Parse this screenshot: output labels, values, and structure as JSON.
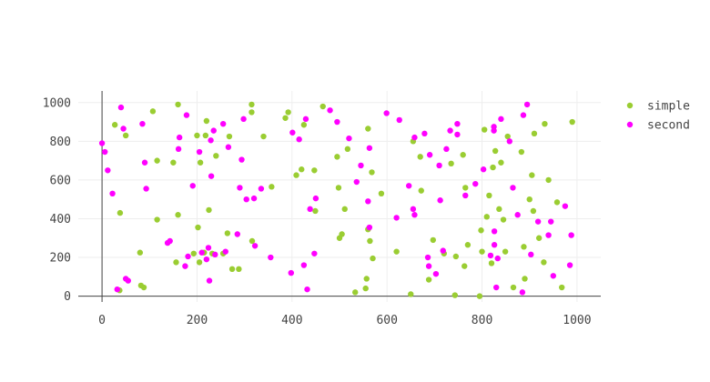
{
  "chart_data": {
    "type": "scatter",
    "xlim": [
      -50,
      1050
    ],
    "ylim": [
      -30,
      1060
    ],
    "x_ticks": [
      0,
      200,
      400,
      600,
      800,
      1000
    ],
    "y_ticks": [
      0,
      200,
      400,
      600,
      800,
      1000
    ],
    "grid": true,
    "legend_position": "top-right",
    "series": [
      {
        "name": "simple",
        "color": "#9acd32",
        "points": [
          [
            27,
            885
          ],
          [
            37,
            30
          ],
          [
            38,
            430
          ],
          [
            50,
            830
          ],
          [
            80,
            225
          ],
          [
            82,
            55
          ],
          [
            88,
            45
          ],
          [
            107,
            955
          ],
          [
            116,
            395
          ],
          [
            116,
            700
          ],
          [
            150,
            690
          ],
          [
            156,
            175
          ],
          [
            160,
            420
          ],
          [
            160,
            990
          ],
          [
            193,
            220
          ],
          [
            200,
            830
          ],
          [
            202,
            355
          ],
          [
            205,
            175
          ],
          [
            207,
            690
          ],
          [
            215,
            225
          ],
          [
            218,
            830
          ],
          [
            220,
            905
          ],
          [
            225,
            445
          ],
          [
            232,
            220
          ],
          [
            240,
            725
          ],
          [
            255,
            220
          ],
          [
            264,
            325
          ],
          [
            268,
            825
          ],
          [
            274,
            140
          ],
          [
            288,
            140
          ],
          [
            315,
            990
          ],
          [
            315,
            950
          ],
          [
            316,
            285
          ],
          [
            340,
            825
          ],
          [
            357,
            565
          ],
          [
            386,
            920
          ],
          [
            392,
            950
          ],
          [
            409,
            625
          ],
          [
            420,
            655
          ],
          [
            425,
            885
          ],
          [
            447,
            650
          ],
          [
            449,
            440
          ],
          [
            465,
            980
          ],
          [
            495,
            720
          ],
          [
            498,
            560
          ],
          [
            500,
            300
          ],
          [
            505,
            320
          ],
          [
            511,
            450
          ],
          [
            517,
            760
          ],
          [
            533,
            20
          ],
          [
            555,
            40
          ],
          [
            557,
            90
          ],
          [
            560,
            345
          ],
          [
            560,
            865
          ],
          [
            564,
            285
          ],
          [
            568,
            640
          ],
          [
            570,
            195
          ],
          [
            588,
            530
          ],
          [
            620,
            230
          ],
          [
            650,
            10
          ],
          [
            655,
            800
          ],
          [
            670,
            720
          ],
          [
            672,
            545
          ],
          [
            688,
            85
          ],
          [
            697,
            290
          ],
          [
            720,
            220
          ],
          [
            735,
            685
          ],
          [
            743,
            5
          ],
          [
            745,
            205
          ],
          [
            760,
            730
          ],
          [
            763,
            155
          ],
          [
            765,
            560
          ],
          [
            770,
            265
          ],
          [
            795,
            0
          ],
          [
            798,
            340
          ],
          [
            800,
            230
          ],
          [
            805,
            860
          ],
          [
            810,
            410
          ],
          [
            815,
            520
          ],
          [
            820,
            170
          ],
          [
            823,
            665
          ],
          [
            828,
            750
          ],
          [
            836,
            450
          ],
          [
            840,
            690
          ],
          [
            845,
            395
          ],
          [
            849,
            230
          ],
          [
            854,
            825
          ],
          [
            866,
            45
          ],
          [
            883,
            745
          ],
          [
            888,
            255
          ],
          [
            890,
            90
          ],
          [
            900,
            500
          ],
          [
            905,
            625
          ],
          [
            908,
            440
          ],
          [
            910,
            840
          ],
          [
            920,
            300
          ],
          [
            930,
            175
          ],
          [
            932,
            890
          ],
          [
            940,
            600
          ],
          [
            958,
            485
          ],
          [
            968,
            45
          ],
          [
            990,
            900
          ]
        ]
      },
      {
        "name": "second",
        "color": "#ff00ff",
        "points": [
          [
            0,
            790
          ],
          [
            6,
            745
          ],
          [
            12,
            650
          ],
          [
            22,
            530
          ],
          [
            32,
            35
          ],
          [
            40,
            975
          ],
          [
            45,
            865
          ],
          [
            50,
            90
          ],
          [
            55,
            80
          ],
          [
            85,
            890
          ],
          [
            90,
            690
          ],
          [
            93,
            555
          ],
          [
            138,
            275
          ],
          [
            143,
            285
          ],
          [
            161,
            760
          ],
          [
            163,
            820
          ],
          [
            175,
            155
          ],
          [
            178,
            935
          ],
          [
            181,
            205
          ],
          [
            191,
            570
          ],
          [
            205,
            745
          ],
          [
            210,
            225
          ],
          [
            220,
            190
          ],
          [
            224,
            250
          ],
          [
            226,
            80
          ],
          [
            229,
            805
          ],
          [
            230,
            620
          ],
          [
            235,
            855
          ],
          [
            238,
            215
          ],
          [
            255,
            890
          ],
          [
            260,
            230
          ],
          [
            266,
            770
          ],
          [
            285,
            320
          ],
          [
            290,
            560
          ],
          [
            294,
            705
          ],
          [
            298,
            915
          ],
          [
            304,
            500
          ],
          [
            320,
            505
          ],
          [
            322,
            260
          ],
          [
            335,
            555
          ],
          [
            355,
            200
          ],
          [
            398,
            120
          ],
          [
            401,
            845
          ],
          [
            415,
            810
          ],
          [
            425,
            160
          ],
          [
            429,
            915
          ],
          [
            432,
            35
          ],
          [
            438,
            450
          ],
          [
            447,
            220
          ],
          [
            450,
            505
          ],
          [
            480,
            960
          ],
          [
            495,
            900
          ],
          [
            520,
            815
          ],
          [
            536,
            590
          ],
          [
            545,
            675
          ],
          [
            560,
            490
          ],
          [
            563,
            355
          ],
          [
            563,
            765
          ],
          [
            599,
            945
          ],
          [
            620,
            405
          ],
          [
            626,
            910
          ],
          [
            646,
            570
          ],
          [
            655,
            450
          ],
          [
            658,
            420
          ],
          [
            658,
            820
          ],
          [
            679,
            840
          ],
          [
            686,
            200
          ],
          [
            688,
            155
          ],
          [
            690,
            730
          ],
          [
            703,
            115
          ],
          [
            710,
            675
          ],
          [
            712,
            495
          ],
          [
            718,
            235
          ],
          [
            725,
            760
          ],
          [
            733,
            855
          ],
          [
            748,
            890
          ],
          [
            748,
            835
          ],
          [
            765,
            520
          ],
          [
            786,
            580
          ],
          [
            803,
            655
          ],
          [
            818,
            210
          ],
          [
            825,
            875
          ],
          [
            825,
            855
          ],
          [
            826,
            265
          ],
          [
            826,
            335
          ],
          [
            830,
            45
          ],
          [
            833,
            195
          ],
          [
            840,
            915
          ],
          [
            858,
            800
          ],
          [
            865,
            560
          ],
          [
            875,
            420
          ],
          [
            885,
            20
          ],
          [
            887,
            935
          ],
          [
            895,
            990
          ],
          [
            903,
            215
          ],
          [
            918,
            385
          ],
          [
            940,
            315
          ],
          [
            945,
            385
          ],
          [
            950,
            105
          ],
          [
            975,
            465
          ],
          [
            985,
            160
          ],
          [
            988,
            315
          ]
        ]
      }
    ]
  }
}
